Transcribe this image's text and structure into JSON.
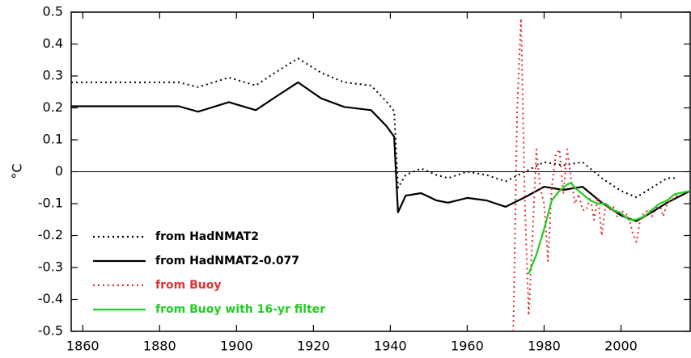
{
  "chart_data": {
    "type": "line",
    "y_label": "°C",
    "xlim": [
      1857,
      2018
    ],
    "xticks": [
      1860,
      1880,
      1900,
      1920,
      1940,
      1960,
      1980,
      2000
    ],
    "ylim": [
      -0.5,
      0.5
    ],
    "yticks": [
      -0.5,
      -0.4,
      -0.3,
      -0.2,
      -0.1,
      0,
      0.1,
      0.2,
      0.3,
      0.4,
      0.5
    ],
    "zero_line": true,
    "legend": "lower left",
    "series": [
      {
        "name": "from HadNMAT2",
        "color": "#000000",
        "style": "dotted",
        "x": [
          1857,
          1885,
          1890,
          1898,
          1905,
          1910,
          1916,
          1922,
          1928,
          1935,
          1939,
          1941,
          1942,
          1944,
          1948,
          1952,
          1955,
          1960,
          1965,
          1970,
          1975,
          1980,
          1985,
          1990,
          1995,
          2000,
          2004,
          2008,
          2012,
          2014
        ],
        "values": [
          0.28,
          0.28,
          0.265,
          0.295,
          0.27,
          0.31,
          0.355,
          0.31,
          0.28,
          0.27,
          0.22,
          0.19,
          -0.05,
          -0.01,
          0.01,
          -0.01,
          -0.02,
          0.0,
          -0.01,
          -0.03,
          0.0,
          0.03,
          0.02,
          0.03,
          -0.02,
          -0.06,
          -0.08,
          -0.05,
          -0.02,
          -0.02
        ]
      },
      {
        "name": "from HadNMAT2-0.077",
        "color": "#000000",
        "style": "solid",
        "x": [
          1857,
          1885,
          1890,
          1898,
          1905,
          1910,
          1916,
          1922,
          1928,
          1935,
          1939,
          1941,
          1942,
          1944,
          1948,
          1952,
          1955,
          1960,
          1965,
          1970,
          1975,
          1980,
          1985,
          1990,
          1995,
          2000,
          2004,
          2008,
          2012,
          2018
        ],
        "values": [
          0.205,
          0.205,
          0.188,
          0.218,
          0.193,
          0.233,
          0.28,
          0.23,
          0.203,
          0.193,
          0.143,
          0.11,
          -0.127,
          -0.075,
          -0.067,
          -0.09,
          -0.097,
          -0.082,
          -0.09,
          -0.11,
          -0.08,
          -0.047,
          -0.057,
          -0.047,
          -0.097,
          -0.137,
          -0.155,
          -0.127,
          -0.097,
          -0.06
        ]
      },
      {
        "name": "from Buoy",
        "color": "#e03030",
        "style": "dotted",
        "x": [
          1972,
          1973,
          1974,
          1975,
          1976,
          1977,
          1978,
          1979,
          1980,
          1981,
          1982,
          1983,
          1984,
          1985,
          1986,
          1987,
          1988,
          1989,
          1990,
          1991,
          1992,
          1993,
          1994,
          1995,
          1996,
          1997,
          1998,
          1999,
          2000,
          2001,
          2002,
          2003,
          2004,
          2005,
          2006,
          2007,
          2008,
          2009,
          2010,
          2011,
          2012,
          2013,
          2014,
          2015
        ],
        "values": [
          -0.5,
          0.2,
          0.48,
          -0.1,
          -0.45,
          -0.2,
          0.07,
          -0.05,
          -0.1,
          -0.28,
          -0.05,
          0.05,
          0.07,
          -0.07,
          0.07,
          -0.02,
          -0.1,
          -0.07,
          -0.12,
          -0.12,
          -0.08,
          -0.15,
          -0.08,
          -0.2,
          -0.1,
          -0.12,
          -0.11,
          -0.14,
          -0.12,
          -0.13,
          -0.14,
          -0.19,
          -0.22,
          -0.15,
          -0.13,
          -0.12,
          -0.14,
          -0.12,
          -0.1,
          -0.14,
          -0.1,
          -0.09,
          -0.08,
          -0.07
        ]
      },
      {
        "name": "from Buoy with 16-yr filter",
        "color": "#22cc22",
        "style": "solid",
        "x": [
          1976,
          1978,
          1980,
          1982,
          1984,
          1986,
          1987,
          1988,
          1990,
          1992,
          1994,
          1996,
          1998,
          2000,
          2002,
          2004,
          2006,
          2008,
          2010,
          2012,
          2014,
          2018
        ],
        "values": [
          -0.32,
          -0.26,
          -0.18,
          -0.09,
          -0.06,
          -0.04,
          -0.035,
          -0.05,
          -0.07,
          -0.09,
          -0.1,
          -0.1,
          -0.12,
          -0.13,
          -0.15,
          -0.15,
          -0.14,
          -0.12,
          -0.1,
          -0.09,
          -0.07,
          -0.06
        ]
      }
    ]
  }
}
